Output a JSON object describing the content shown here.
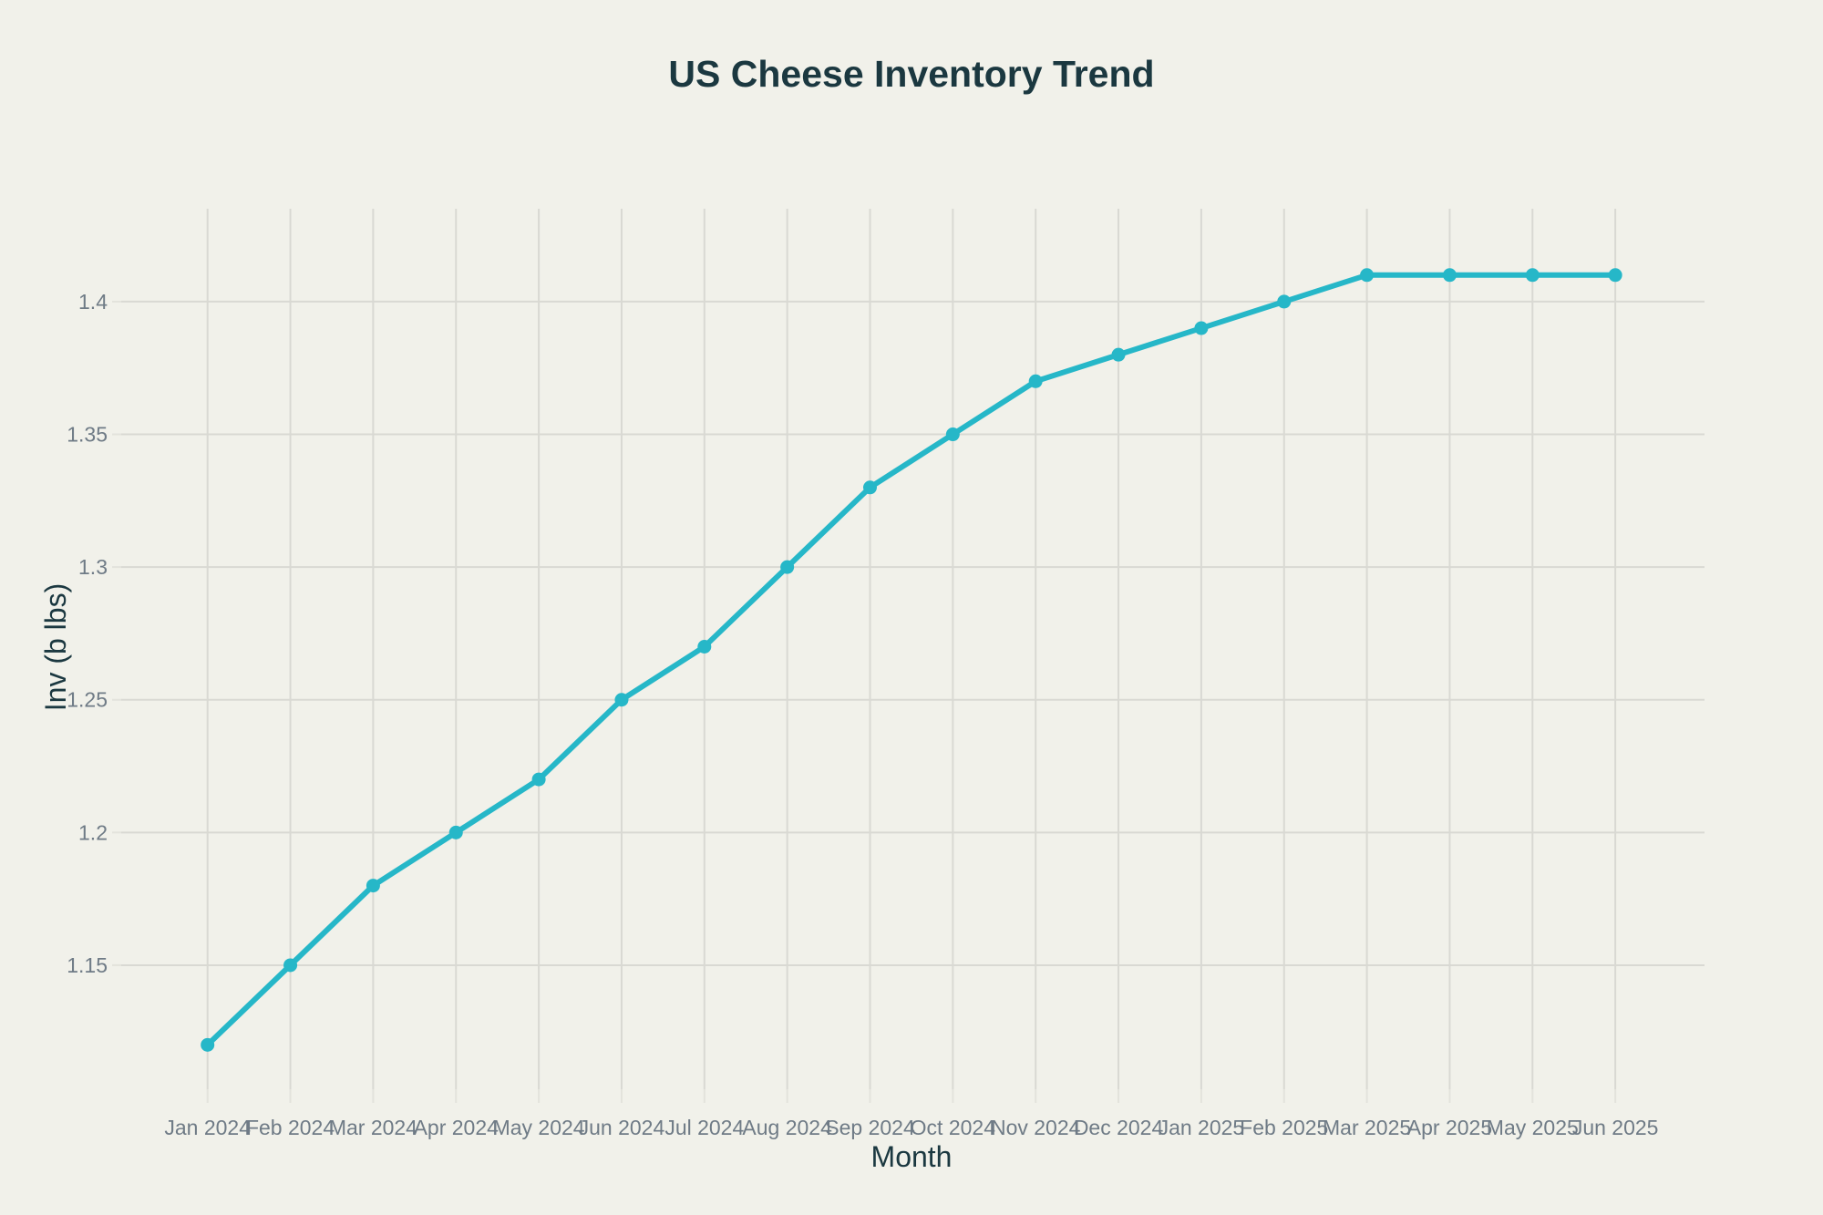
{
  "chart_data": {
    "type": "line",
    "title": "US Cheese Inventory Trend",
    "xlabel": "Month",
    "ylabel": "Inv (b lbs)",
    "categories": [
      "Jan 2024",
      "Feb 2024",
      "Mar 2024",
      "Apr 2024",
      "May 2024",
      "Jun 2024",
      "Jul 2024",
      "Aug 2024",
      "Sep 2024",
      "Oct 2024",
      "Nov 2024",
      "Dec 2024",
      "Jan 2025",
      "Feb 2025",
      "Mar 2025",
      "Apr 2025",
      "May 2025",
      "Jun 2025"
    ],
    "series": [
      {
        "name": "US Cheese Inventory",
        "values": [
          1.12,
          1.15,
          1.18,
          1.2,
          1.22,
          1.25,
          1.27,
          1.3,
          1.33,
          1.35,
          1.37,
          1.38,
          1.39,
          1.4,
          1.41,
          1.41,
          1.41,
          1.41
        ]
      }
    ],
    "ytick_values": [
      1.15,
      1.2,
      1.25,
      1.3,
      1.35,
      1.4
    ],
    "ytick_labels": [
      "1.15",
      "1.2",
      "1.25",
      "1.3",
      "1.35",
      "1.4"
    ],
    "ylim": [
      1.105,
      1.435
    ],
    "grid": true,
    "legend_position": "none",
    "marker_style": "circle",
    "colors": {
      "line": "#26b7c8",
      "marker": "#26b7c8",
      "grid": "#d9d9d3",
      "tick_mark": "#e3e3dc",
      "title_text": "#1b3840",
      "axis_title_text": "#1b3840",
      "tick_label_text": "#6f7b86",
      "background": "#f1f1ea"
    }
  }
}
